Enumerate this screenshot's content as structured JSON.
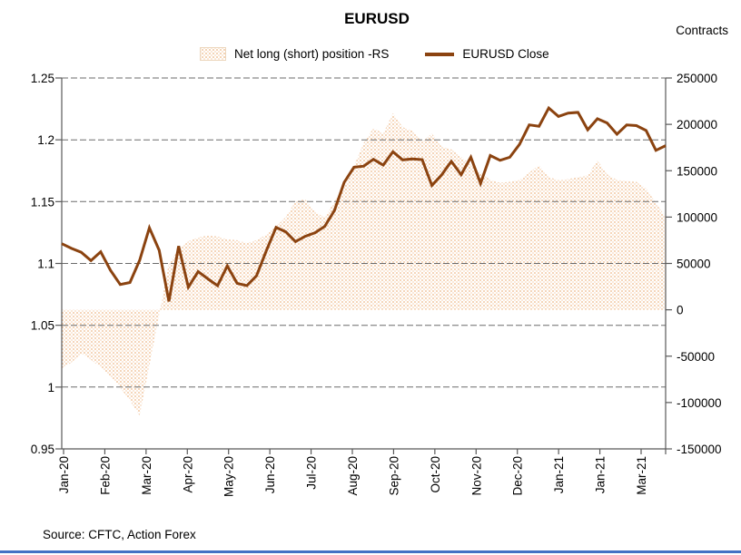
{
  "title": "EURUSD",
  "right_axis_title": "Contracts",
  "source": "Source: CFTC, Action Forex",
  "legend": {
    "items": [
      {
        "label": "Net long (short) position -RS",
        "swatch": "dotted-area-swatch"
      },
      {
        "label": "EURUSD Close",
        "swatch": "line-swatch"
      }
    ]
  },
  "colors": {
    "line": "#8B4310",
    "area_dot_dark": "#F1C59E",
    "area_dot_light": "#F8DFC9",
    "area_bg": "#FFFFFF",
    "grid": "#6b6b6b",
    "axis": "#595959",
    "text": "#000000",
    "bottom_bar": "#4472C4"
  },
  "chart_data": {
    "type": "area+line",
    "title": "EURUSD",
    "x_labels": [
      "Jan-20",
      "Feb-20",
      "Mar-20",
      "Apr-20",
      "May-20",
      "Jun-20",
      "Jul-20",
      "Aug-20",
      "Sep-20",
      "Oct-20",
      "Nov-20",
      "Dec-20",
      "Jan-21",
      "Jan-21",
      "Mar-21"
    ],
    "left_axis": {
      "min": 0.95,
      "max": 1.25,
      "ticks": [
        "1.25",
        "1.2",
        "1.15",
        "1.1",
        "1.05",
        "1",
        "0.95"
      ],
      "tick_values": [
        1.25,
        1.2,
        1.15,
        1.1,
        1.05,
        1.0,
        0.95
      ]
    },
    "right_axis": {
      "min": -150000,
      "max": 250000,
      "ticks": [
        "250000",
        "200000",
        "150000",
        "100000",
        "50000",
        "0",
        "-50000",
        "-100000",
        "-150000"
      ],
      "tick_values": [
        250000,
        200000,
        150000,
        100000,
        50000,
        0,
        -50000,
        -100000,
        -150000
      ]
    },
    "grid": "dashed horizontal at left-axis ticks",
    "legend_position": "top-center",
    "series": [
      {
        "name": "Net long (short) position -RS",
        "type": "area",
        "axis": "right",
        "unit": "contracts",
        "values": [
          -63000,
          -57000,
          -47000,
          -54000,
          -62000,
          -72000,
          -84000,
          -98000,
          -114000,
          -60000,
          -5000,
          50000,
          65000,
          74000,
          78000,
          80000,
          79000,
          76000,
          75000,
          72000,
          75000,
          81000,
          90000,
          100000,
          117000,
          119000,
          106000,
          99000,
          117000,
          132000,
          155000,
          180000,
          196000,
          190000,
          212000,
          197000,
          193000,
          181000,
          190000,
          176000,
          173000,
          165000,
          156000,
          148000,
          140000,
          137000,
          138000,
          140000,
          148000,
          156000,
          143000,
          140000,
          141000,
          143000,
          145000,
          161000,
          146000,
          140000,
          139000,
          138000,
          131000,
          115000,
          100000
        ]
      },
      {
        "name": "EURUSD Close",
        "type": "line",
        "axis": "left",
        "unit": "price",
        "values": [
          1.116,
          1.1122,
          1.109,
          1.1023,
          1.1094,
          1.0945,
          1.083,
          1.0846,
          1.1026,
          1.1288,
          1.1106,
          1.0693,
          1.114,
          1.0808,
          1.0935,
          1.0875,
          1.082,
          1.098,
          1.0839,
          1.082,
          1.0901,
          1.1101,
          1.1291,
          1.1256,
          1.1177,
          1.1219,
          1.1248,
          1.13,
          1.1428,
          1.1656,
          1.1778,
          1.1787,
          1.1842,
          1.1796,
          1.1903,
          1.1838,
          1.1846,
          1.184,
          1.1631,
          1.1716,
          1.1826,
          1.1718,
          1.186,
          1.1647,
          1.1873,
          1.1834,
          1.1859,
          1.1963,
          1.2121,
          1.211,
          1.2257,
          1.2189,
          1.2216,
          1.2222,
          1.2081,
          1.2171,
          1.2136,
          1.2045,
          1.212,
          1.2115,
          1.2075,
          1.1915,
          1.1953
        ]
      }
    ]
  }
}
